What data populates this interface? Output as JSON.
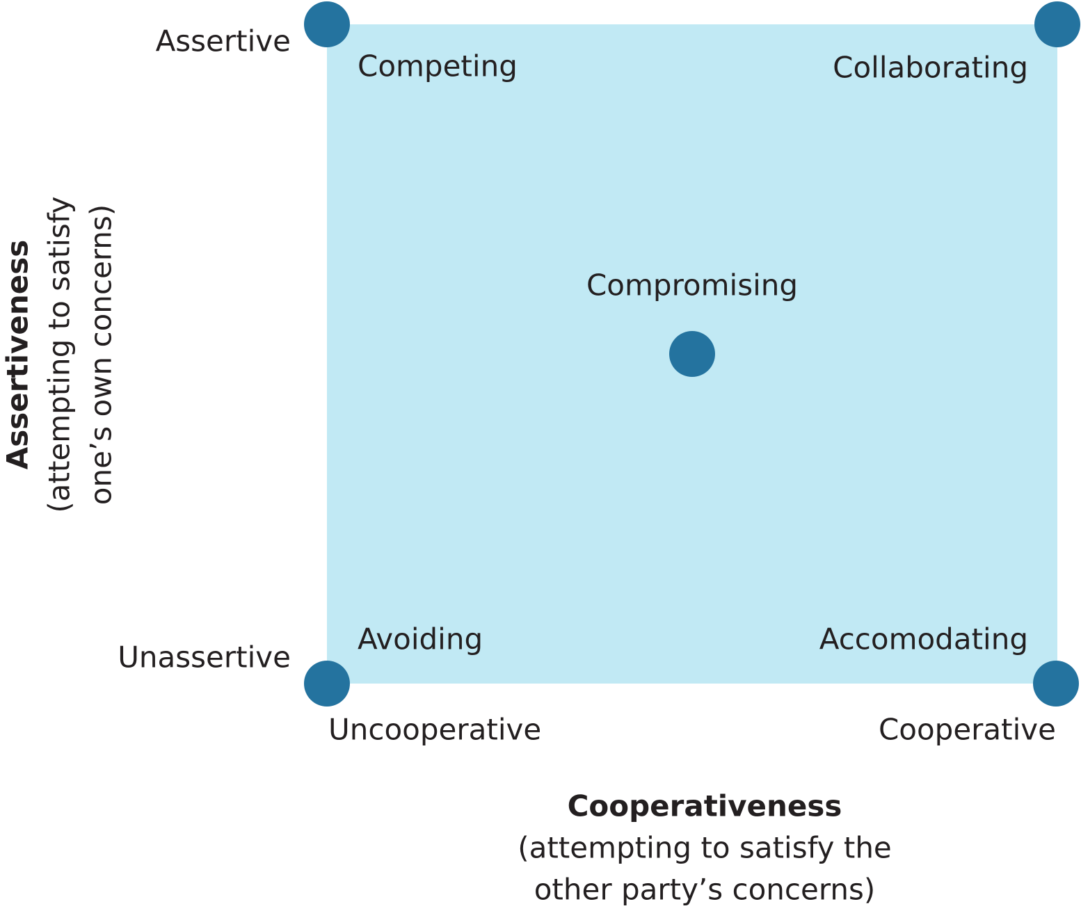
{
  "y_axis": {
    "title": "Assertiveness",
    "subtitle": [
      "(attempting to satisfy",
      "one’s own concerns)"
    ],
    "high": "Assertive",
    "low": "Unassertive"
  },
  "x_axis": {
    "title": "Cooperativeness",
    "subtitle": [
      "(attempting to satisfy the",
      "other party’s concerns)"
    ],
    "low": "Uncooperative",
    "high": "Cooperative"
  },
  "modes": [
    {
      "label": "Competing"
    },
    {
      "label": "Collaborating"
    },
    {
      "label": "Compromising"
    },
    {
      "label": "Avoiding"
    },
    {
      "label": "Accomodating"
    }
  ]
}
